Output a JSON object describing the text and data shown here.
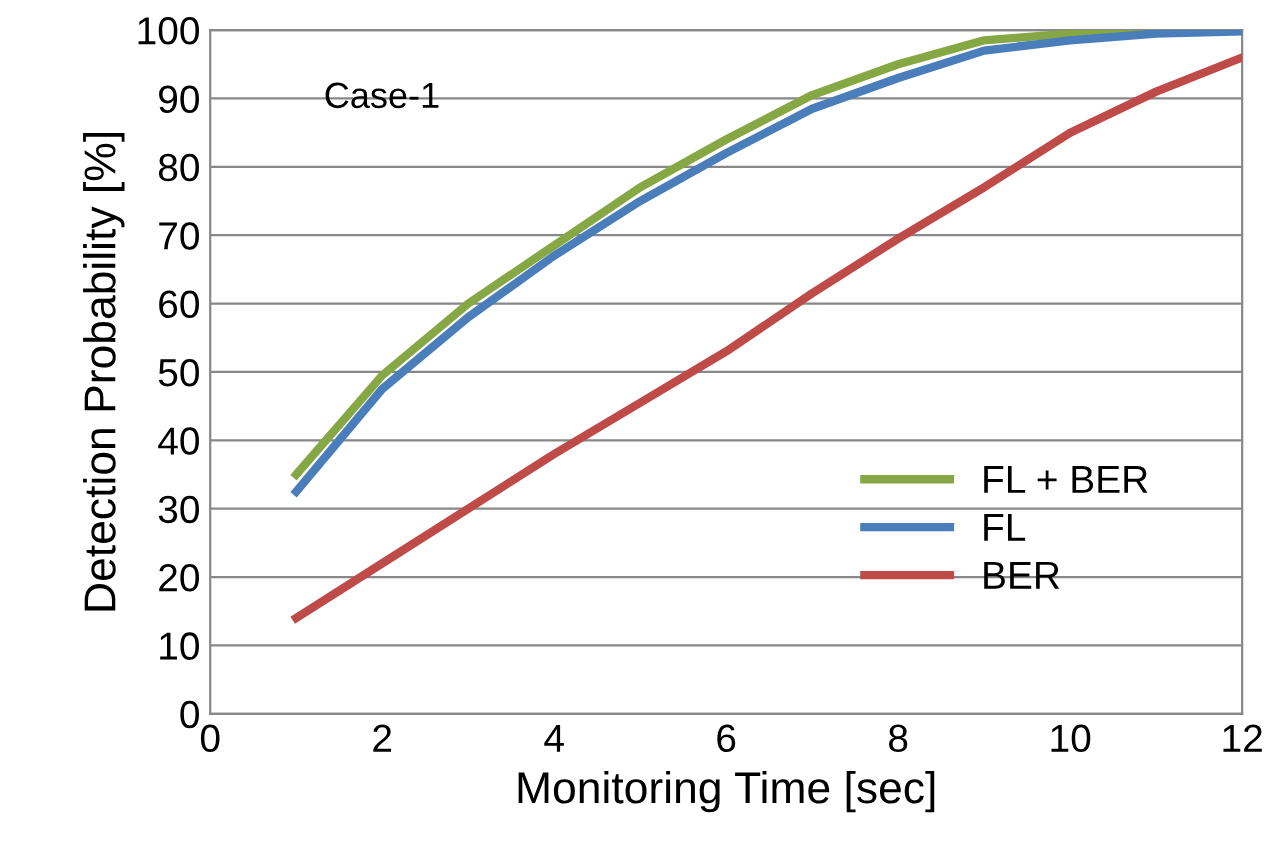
{
  "chart_data": {
    "type": "line",
    "xlabel": "Monitoring Time [sec]",
    "ylabel": "Detection Probability [%]",
    "x": [
      1,
      2,
      3,
      4,
      5,
      6,
      7,
      8,
      9,
      10,
      11,
      12
    ],
    "series": [
      {
        "name": "FL + BER",
        "color": "#86a844",
        "values": [
          35,
          49.5,
          60,
          68.5,
          77,
          84,
          90.5,
          95,
          98.5,
          99.5,
          100,
          100
        ]
      },
      {
        "name": "FL",
        "color": "#4a7ebb",
        "values": [
          32.5,
          47.5,
          58,
          67,
          75,
          82,
          88.5,
          93,
          97,
          98.5,
          99.5,
          99.8
        ]
      },
      {
        "name": "BER",
        "color": "#be4b48",
        "values": [
          14,
          22,
          30,
          38,
          45.5,
          53,
          61.5,
          69.5,
          77,
          85,
          91,
          96
        ]
      }
    ],
    "xlim": [
      0,
      12
    ],
    "xticks": [
      0,
      2,
      4,
      6,
      8,
      10,
      12
    ],
    "ylim": [
      0,
      100
    ],
    "yticks": [
      0,
      10,
      20,
      30,
      40,
      50,
      60,
      70,
      80,
      90,
      100
    ],
    "grid": "y",
    "legend": "bottom right",
    "marker": "none",
    "line_style": "solid",
    "annotations": [
      "Case-1"
    ]
  }
}
